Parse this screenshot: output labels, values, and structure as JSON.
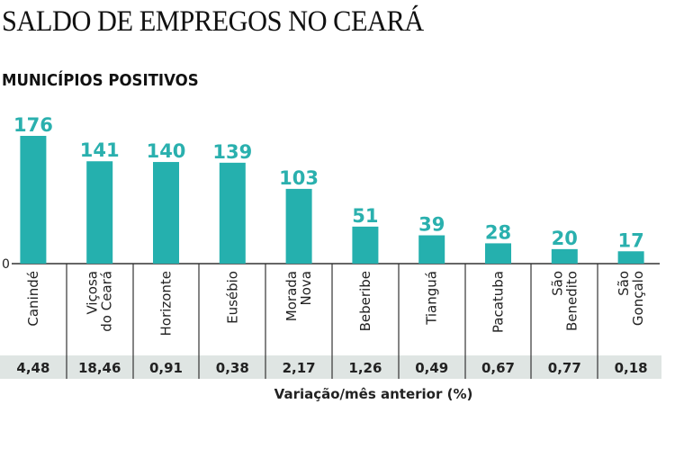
{
  "header": {
    "title": "SALDO DE EMPREGOS NO CEARÁ",
    "subtitle": "MUNICÍPIOS POSITIVOS"
  },
  "colors": {
    "bar": "#25b0ae",
    "strip": "#dfe5e3",
    "axis": "#333333"
  },
  "chart_data": {
    "type": "bar",
    "title": "SALDO DE EMPREGOS NO CEARÁ",
    "subtitle": "MUNICÍPIOS POSITIVOS",
    "categories": [
      [
        "Canindé"
      ],
      [
        "Viçosa",
        "do Ceará"
      ],
      [
        "Horizonte"
      ],
      [
        "Eusébio"
      ],
      [
        "Morada",
        "Nova"
      ],
      [
        "Beberibe"
      ],
      [
        "Tianguá"
      ],
      [
        "Pacatuba"
      ],
      [
        "São",
        "Benedito"
      ],
      [
        "São",
        "Gonçalo"
      ]
    ],
    "values": [
      176,
      141,
      140,
      139,
      103,
      51,
      39,
      28,
      20,
      17
    ],
    "value_labels": [
      "176",
      "141",
      "140",
      "139",
      "103",
      "51",
      "39",
      "28",
      "20",
      "17"
    ],
    "variation_percent": [
      "4,48",
      "18,46",
      "0,91",
      "0,38",
      "2,17",
      "1,26",
      "0,49",
      "0,67",
      "0,77",
      "0,18"
    ],
    "variation_label": "Variação/mês anterior (%)",
    "y_zero_label": "0",
    "ylim": [
      0,
      176
    ],
    "grid": false,
    "legend": "none"
  }
}
